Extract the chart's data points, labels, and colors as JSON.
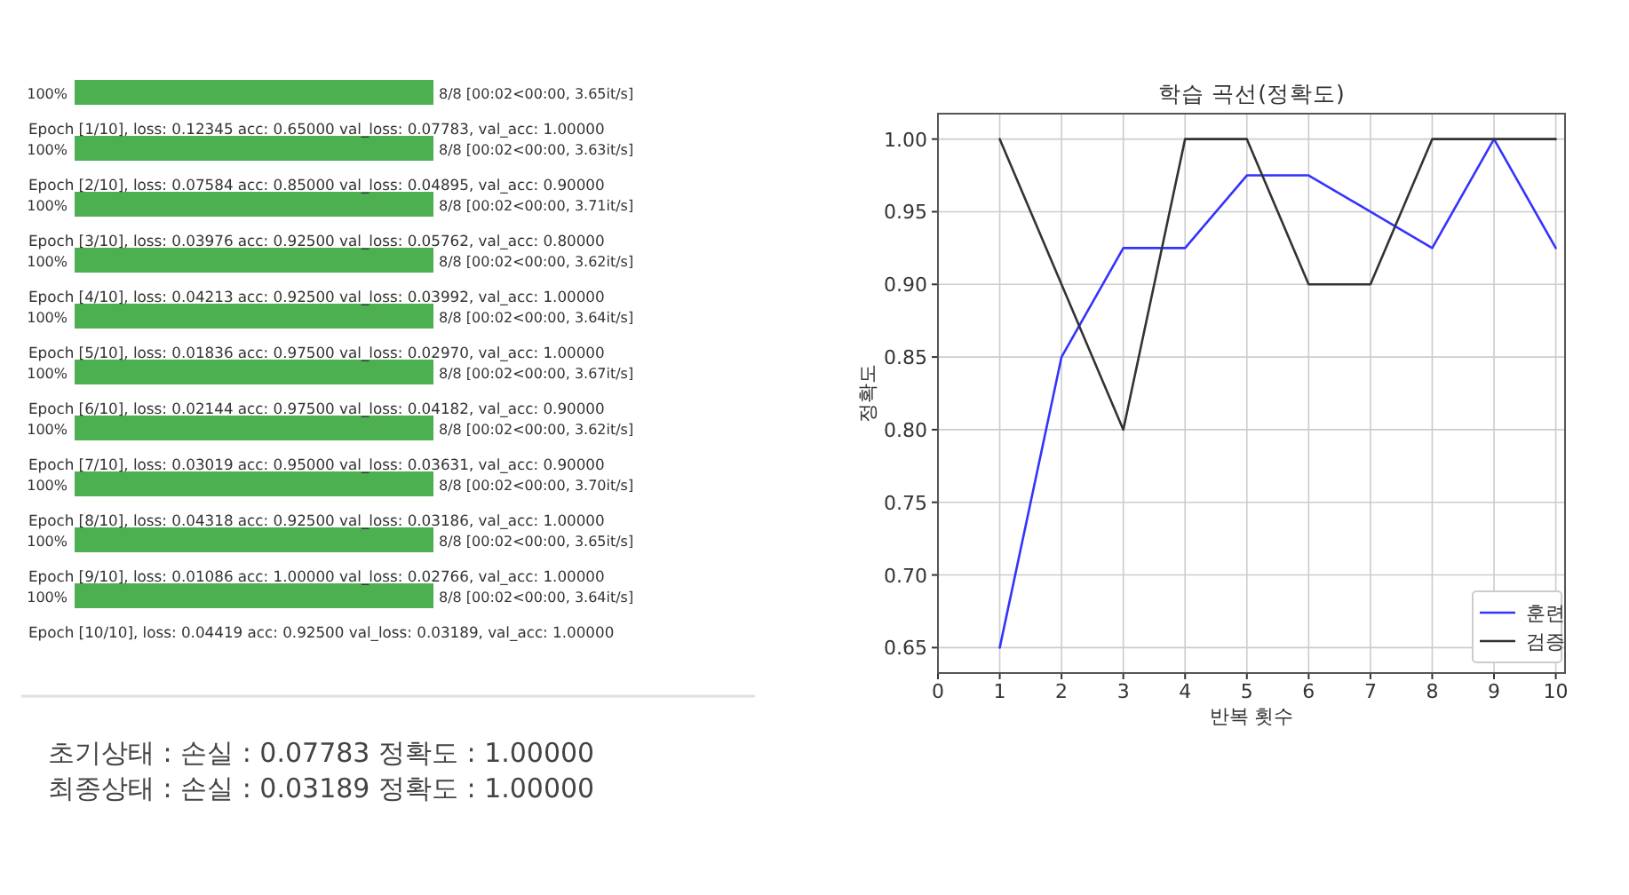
{
  "chart_data": [
    {
      "type": "other",
      "annotations": [
        "100%",
        "8/8 [00:02<00:00, 3.65it/s]",
        "Epoch [1/10], loss: 0.12345 acc: 0.65000 val_loss: 0.07783, val_acc: 1.00000",
        "100%",
        "8/8 [00:02<00:00, 3.63it/s]",
        "Epoch [2/10], loss: 0.07584 acc: 0.85000 val_loss: 0.04895, val_acc: 0.90000",
        "100%",
        "8/8 [00:02<00:00, 3.71it/s]",
        "Epoch [3/10], loss: 0.03976 acc: 0.92500 val_loss: 0.05762, val_acc: 0.80000",
        "100%",
        "8/8 [00:02<00:00, 3.62it/s]",
        "Epoch [4/10], loss: 0.04213 acc: 0.92500 val_loss: 0.03992, val_acc: 1.00000",
        "100%",
        "8/8 [00:02<00:00, 3.64it/s]",
        "Epoch [5/10], loss: 0.01836 acc: 0.97500 val_loss: 0.02970, val_acc: 1.00000",
        "100%",
        "8/8 [00:02<00:00, 3.67it/s]",
        "Epoch [6/10], loss: 0.02144 acc: 0.97500 val_loss: 0.04182, val_acc: 0.90000",
        "100%",
        "8/8 [00:02<00:00, 3.62it/s]",
        "Epoch [7/10], loss: 0.03019 acc: 0.95000 val_loss: 0.03631, val_acc: 0.90000",
        "100%",
        "8/8 [00:02<00:00, 3.70it/s]",
        "Epoch [8/10], loss: 0.04318 acc: 0.92500 val_loss: 0.03186, val_acc: 1.00000",
        "100%",
        "8/8 [00:02<00:00, 3.65it/s]",
        "Epoch [9/10], loss: 0.01086 acc: 1.00000 val_loss: 0.02766, val_acc: 1.00000",
        "100%",
        "8/8 [00:02<00:00, 3.64it/s]",
        "Epoch [10/10], loss: 0.04419 acc: 0.92500 val_loss: 0.03189, val_acc: 1.00000",
        "초기상태 : 손실 : 0.07783   정확도 : 1.00000",
        "최종상태 : 손실 : 0.03189 정확도 : 1.00000"
      ]
    },
    {
      "type": "line",
      "title": "학습 곡선(정확도)",
      "xlabel": "반복 횟수",
      "ylabel": "정확도",
      "x": [
        1,
        2,
        3,
        4,
        5,
        6,
        7,
        8,
        9,
        10
      ],
      "series": [
        {
          "name": "훈련",
          "color": "#3333ff",
          "values": [
            0.65,
            0.85,
            0.925,
            0.925,
            0.975,
            0.975,
            0.95,
            0.925,
            1.0,
            0.925
          ]
        },
        {
          "name": "검증",
          "color": "#333333",
          "values": [
            1.0,
            0.9,
            0.8,
            1.0,
            1.0,
            0.9,
            0.9,
            1.0,
            1.0,
            1.0
          ]
        }
      ],
      "xlim": [
        0,
        10.15
      ],
      "xticks": [
        0,
        1,
        2,
        3,
        4,
        5,
        6,
        7,
        8,
        9,
        10
      ],
      "ylim": [
        0.6325,
        1.0175
      ],
      "yticks": [
        {
          "value": 0.65,
          "label": "0.65"
        },
        {
          "value": 0.7,
          "label": "0.70"
        },
        {
          "value": 0.75,
          "label": "0.75"
        },
        {
          "value": 0.8,
          "label": "0.80"
        },
        {
          "value": 0.85,
          "label": "0.85"
        },
        {
          "value": 0.9,
          "label": "0.90"
        },
        {
          "value": 0.95,
          "label": "0.95"
        },
        {
          "value": 1.0,
          "label": "1.00"
        }
      ],
      "grid": true,
      "legend": "bottom right",
      "line_style": "solid",
      "marker": "none"
    }
  ]
}
